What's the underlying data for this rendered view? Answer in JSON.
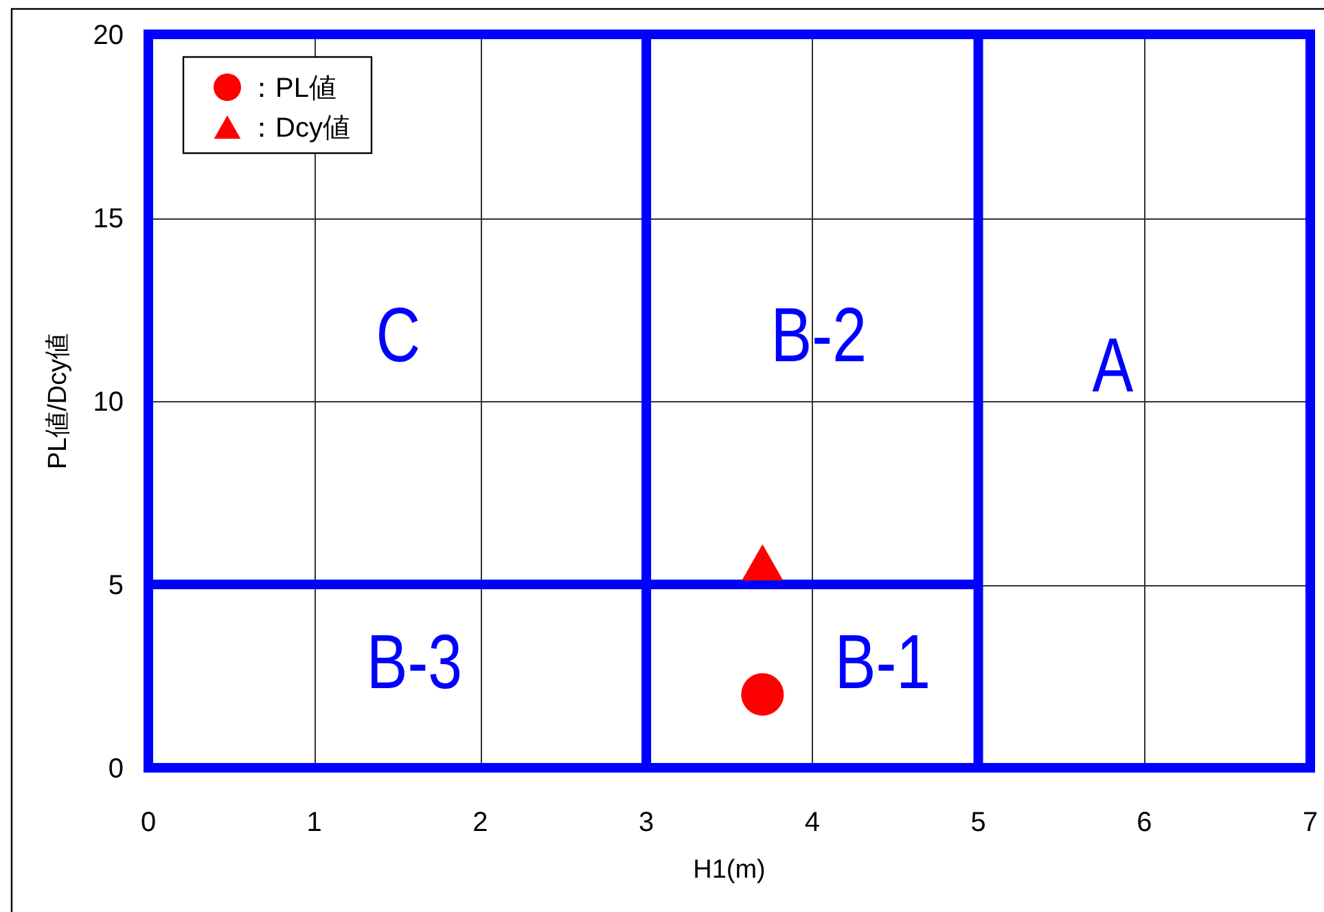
{
  "chart_data": {
    "type": "scatter",
    "xlabel": "H1(m)",
    "ylabel": "PL値/Dcy値",
    "xlim": [
      0,
      7
    ],
    "ylim": [
      0,
      20
    ],
    "xticks": [
      0,
      1,
      2,
      3,
      4,
      5,
      6,
      7
    ],
    "yticks": [
      0,
      5,
      10,
      15,
      20
    ],
    "grid": true,
    "legend": "top left",
    "ref_lines": [
      {
        "axis": "x",
        "value": 0,
        "color": "#0000ff"
      },
      {
        "axis": "x",
        "value": 3,
        "color": "#0000ff"
      },
      {
        "axis": "x",
        "value": 5,
        "color": "#0000ff"
      },
      {
        "axis": "x",
        "value": 7,
        "color": "#0000ff"
      },
      {
        "axis": "y",
        "value": 0,
        "color": "#0000ff"
      },
      {
        "axis": "y",
        "value": 20,
        "color": "#0000ff"
      }
    ],
    "series": [
      {
        "type": "line",
        "color": "#0000ff",
        "x": [
          0,
          5
        ],
        "values": [
          5,
          5
        ]
      },
      {
        "name": "：PL値",
        "color": "#ff0000",
        "marker": "circle",
        "x": [
          3.7
        ],
        "values": [
          2.0
        ]
      },
      {
        "name": "：Dcy値",
        "color": "#ff0000",
        "marker": "triangle",
        "x": [
          3.7
        ],
        "values": [
          5.6
        ]
      }
    ],
    "annotations": [
      "C",
      "B-2",
      "A",
      "B-3",
      "B-1"
    ]
  }
}
